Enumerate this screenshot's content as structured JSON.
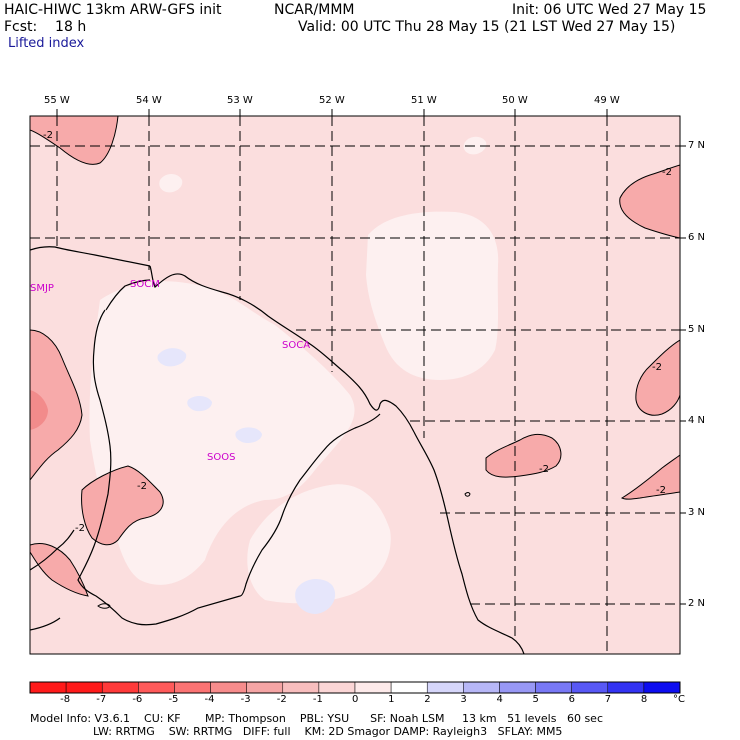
{
  "header": {
    "model": "HAIC-HIWC 13km ARW-GFS init",
    "center": "NCAR/MMM",
    "init": "Init: 06 UTC Wed 27 May 15",
    "fcst": "Fcst:    18 h",
    "valid": "Valid: 00 UTC Thu 28 May 15 (21 LST Wed 27 May 15)",
    "field": "Lifted index"
  },
  "map": {
    "lon_labels": [
      "55 W",
      "54 W",
      "53 W",
      "52 W",
      "51 W",
      "50 W",
      "49 W"
    ],
    "lat_labels": [
      "7 N",
      "6 N",
      "5 N",
      "4 N",
      "3 N",
      "2 N"
    ],
    "stations": [
      "SMJP",
      "SOCM",
      "SOCA",
      "SOOS"
    ],
    "contour_labels": [
      "-2",
      "-2",
      "-2",
      "-2",
      "-2",
      "-2",
      "-2"
    ],
    "colors": {
      "bg_light": "#fbdede",
      "pale": "#fcecec",
      "white": "#fff5f5",
      "neg2": "#f7a8a8",
      "neg3": "#f28a8a",
      "lav": "#e2e2fb"
    }
  },
  "scale": {
    "labels": [
      "-8",
      "-7",
      "-6",
      "-5",
      "-4",
      "-3",
      "-2",
      "-1",
      "0",
      "1",
      "2",
      "3",
      "4",
      "5",
      "6",
      "7",
      "8"
    ],
    "unit": "°C",
    "colors": [
      "#ff1a1a",
      "#ff3a3a",
      "#ff5a5a",
      "#fb7373",
      "#f78c8c",
      "#f5a5a5",
      "#f8bebe",
      "#fbd6d6",
      "#fdeaea",
      "#ffffff",
      "#d6d6fa",
      "#b7b7f7",
      "#9898f5",
      "#7878f5",
      "#5858f5",
      "#3333f3",
      "#0d0df0"
    ]
  },
  "footer": {
    "line1": "Model Info: V3.6.1    CU: KF       MP: Thompson    PBL: YSU      SF: Noah LSM     13 km   51 levels   60 sec",
    "line2": "                  LW: RRTMG    SW: RRTMG   DIFF: full    KM: 2D Smagor DAMP: Rayleigh3   SFLAY: MM5"
  }
}
